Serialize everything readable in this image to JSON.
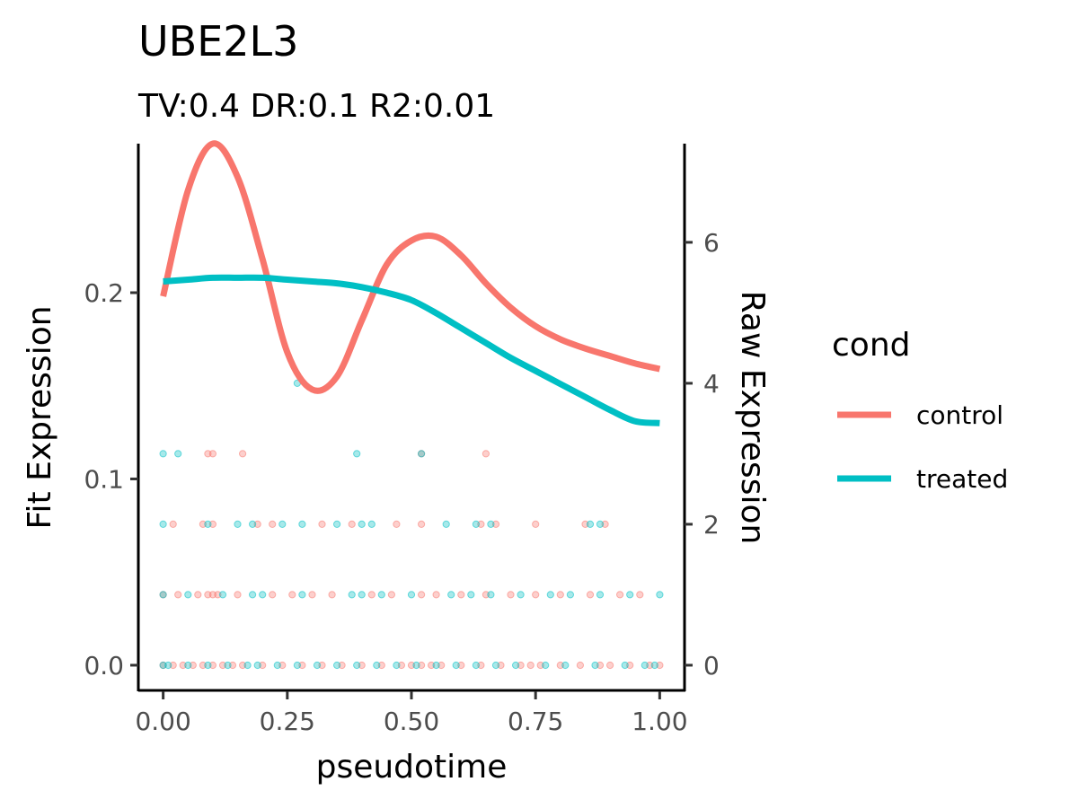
{
  "chart_data": {
    "type": "scatter",
    "title": "UBE2L3",
    "subtitle": "TV:0.4 DR:0.1 R2:0.01",
    "xlabel": "pseudotime",
    "ylabel_left": "Fit Expression",
    "ylabel_right": "Raw Expression",
    "xlim": [
      -0.05,
      1.05
    ],
    "ylim_left": [
      -0.014,
      0.28
    ],
    "ylim_right": [
      -0.37,
      7.4
    ],
    "x_ticks": [
      "0.00",
      "0.25",
      "0.50",
      "0.75",
      "1.00"
    ],
    "x_tick_values": [
      0,
      0.25,
      0.5,
      0.75,
      1.0
    ],
    "y_left_ticks": [
      "0.0",
      "0.1",
      "0.2"
    ],
    "y_left_tick_values": [
      0,
      0.1,
      0.2
    ],
    "y_right_ticks": [
      "0",
      "2",
      "4",
      "6"
    ],
    "y_right_tick_values": [
      0,
      2,
      4,
      6
    ],
    "grid": false,
    "legend": {
      "title": "cond",
      "position": "right",
      "entries": [
        {
          "label": "control",
          "color": "#F8766D"
        },
        {
          "label": "treated",
          "color": "#00BFC4"
        }
      ]
    },
    "series": [
      {
        "name": "control",
        "color": "#F8766D",
        "fit_x": [
          0,
          0.05,
          0.1,
          0.15,
          0.2,
          0.25,
          0.3,
          0.35,
          0.4,
          0.45,
          0.5,
          0.55,
          0.6,
          0.65,
          0.7,
          0.75,
          0.8,
          0.85,
          0.9,
          0.95,
          1.0
        ],
        "fit_y": [
          0.198,
          0.255,
          0.28,
          0.262,
          0.218,
          0.168,
          0.148,
          0.155,
          0.185,
          0.215,
          0.228,
          0.23,
          0.22,
          0.205,
          0.192,
          0.182,
          0.175,
          0.17,
          0.166,
          0.162,
          0.159
        ],
        "raw_points": [
          {
            "y": 0,
            "x": [
              0.0,
              0.02,
              0.04,
              0.06,
              0.08,
              0.1,
              0.12,
              0.14,
              0.16,
              0.2,
              0.24,
              0.28,
              0.32,
              0.36,
              0.4,
              0.44,
              0.48,
              0.5,
              0.52,
              0.54,
              0.56,
              0.6,
              0.64,
              0.68,
              0.72,
              0.74,
              0.76,
              0.8,
              0.84,
              0.88,
              0.9,
              0.94,
              0.98,
              1.0
            ]
          },
          {
            "y": 1,
            "x": [
              0.0,
              0.03,
              0.07,
              0.09,
              0.1,
              0.11,
              0.15,
              0.22,
              0.26,
              0.3,
              0.34,
              0.42,
              0.46,
              0.52,
              0.55,
              0.6,
              0.65,
              0.7,
              0.75,
              0.8,
              0.86,
              0.92,
              0.96
            ]
          },
          {
            "y": 2,
            "x": [
              0.02,
              0.08,
              0.1,
              0.19,
              0.22,
              0.32,
              0.38,
              0.47,
              0.52,
              0.64,
              0.67,
              0.75,
              0.85,
              0.89
            ]
          },
          {
            "y": 3,
            "x": [
              0.09,
              0.1,
              0.16,
              0.52,
              0.65
            ]
          }
        ]
      },
      {
        "name": "treated",
        "color": "#00BFC4",
        "fit_x": [
          0,
          0.05,
          0.1,
          0.15,
          0.2,
          0.25,
          0.3,
          0.35,
          0.4,
          0.45,
          0.5,
          0.55,
          0.6,
          0.65,
          0.7,
          0.75,
          0.8,
          0.85,
          0.9,
          0.95,
          1.0
        ],
        "fit_y": [
          0.206,
          0.207,
          0.208,
          0.208,
          0.208,
          0.207,
          0.206,
          0.205,
          0.203,
          0.2,
          0.196,
          0.189,
          0.181,
          0.173,
          0.165,
          0.158,
          0.151,
          0.144,
          0.137,
          0.131,
          0.13
        ],
        "raw_points": [
          {
            "y": 0,
            "x": [
              0.0,
              0.01,
              0.05,
              0.09,
              0.13,
              0.17,
              0.19,
              0.23,
              0.27,
              0.31,
              0.35,
              0.39,
              0.43,
              0.47,
              0.51,
              0.55,
              0.59,
              0.63,
              0.67,
              0.71,
              0.77,
              0.81,
              0.87,
              0.93,
              0.97,
              0.99
            ]
          },
          {
            "y": 1,
            "x": [
              0.0,
              0.05,
              0.12,
              0.18,
              0.2,
              0.28,
              0.38,
              0.4,
              0.44,
              0.5,
              0.58,
              0.62,
              0.66,
              0.72,
              0.78,
              0.82,
              0.88,
              0.94,
              1.0
            ]
          },
          {
            "y": 2,
            "x": [
              0.0,
              0.09,
              0.15,
              0.18,
              0.24,
              0.28,
              0.35,
              0.4,
              0.42,
              0.57,
              0.63,
              0.66,
              0.86,
              0.88
            ]
          },
          {
            "y": 3,
            "x": [
              0.0,
              0.03,
              0.39,
              0.52
            ]
          },
          {
            "y": 4,
            "x": [
              0.27
            ]
          }
        ]
      }
    ]
  }
}
